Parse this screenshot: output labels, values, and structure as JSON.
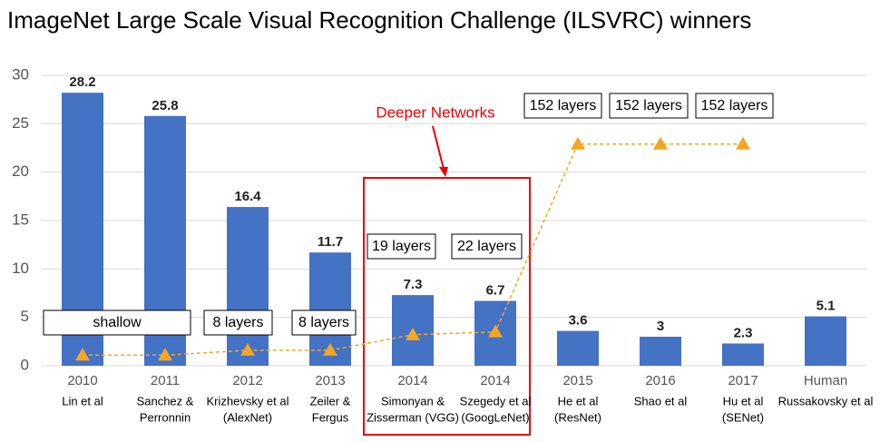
{
  "chart_data": {
    "type": "bar",
    "title": "ImageNet Large Scale Visual Recognition Challenge (ILSVRC) winners",
    "categories": [
      "2010",
      "2011",
      "2012",
      "2013",
      "2014",
      "2014",
      "2015",
      "2016",
      "2017",
      "Human"
    ],
    "authors": [
      [
        "Lin et al"
      ],
      [
        "Sanchez &",
        "Perronnin"
      ],
      [
        "Krizhevsky et al",
        "(AlexNet)"
      ],
      [
        "Zeiler &",
        "Fergus"
      ],
      [
        "Simonyan &",
        "Zisserman (VGG)"
      ],
      [
        "Szegedy et al",
        "(GoogLeNet)"
      ],
      [
        "He et al",
        "(ResNet)"
      ],
      [
        "Shao et al"
      ],
      [
        "Hu et al",
        "(SENet)"
      ],
      [
        "Russakovsky et al"
      ]
    ],
    "series": [
      {
        "type": "bar",
        "color": "#4472c4",
        "values": [
          28.2,
          25.8,
          16.4,
          11.7,
          7.3,
          6.7,
          3.6,
          3,
          2.3,
          5.1
        ]
      },
      {
        "type": "line",
        "color": "#f5a623",
        "values": [
          1.1,
          1.1,
          1.6,
          1.6,
          3.2,
          3.5,
          22.9,
          22.9,
          22.9,
          null
        ]
      }
    ],
    "ylim": [
      0,
      30
    ],
    "yticks": [
      0,
      5,
      10,
      15,
      20,
      25,
      30
    ],
    "grid": true,
    "layer_labels": [
      "shallow",
      "8 layers",
      "8 layers",
      "19 layers",
      "22 layers",
      "152 layers",
      "152 layers",
      "152 layers"
    ],
    "annotation": "Deeper Networks"
  }
}
